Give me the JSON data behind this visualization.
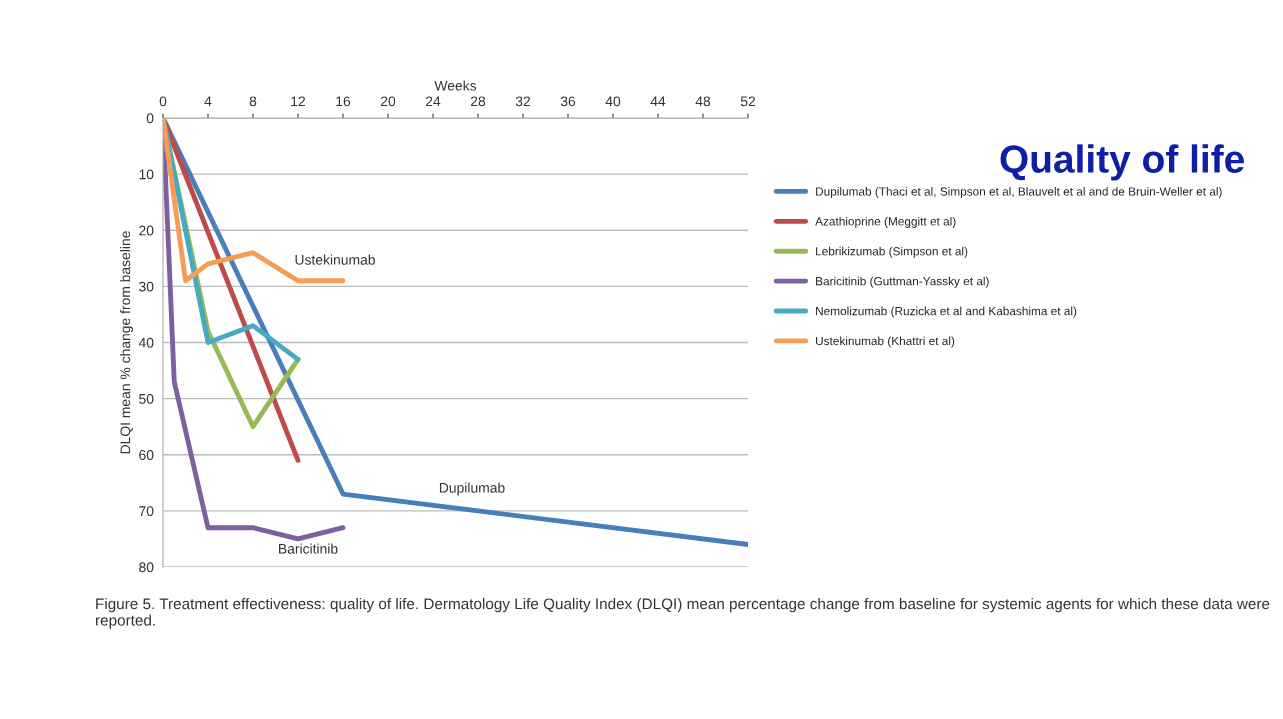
{
  "chart_data": {
    "type": "line",
    "title": "Quality of life",
    "xlabel": "Weeks",
    "ylabel": "DLQI mean % change from baseline",
    "xlim": [
      0,
      52
    ],
    "xticks": [
      0,
      4,
      8,
      12,
      16,
      20,
      24,
      28,
      32,
      36,
      40,
      44,
      48,
      52
    ],
    "ylim": [
      80,
      0
    ],
    "yticks": [
      0,
      10,
      20,
      30,
      40,
      50,
      60,
      70,
      80
    ],
    "grid": "y",
    "legend": "right",
    "marker": "none",
    "line_style": "solid",
    "series": [
      {
        "name": "Dupilumab (Thaci et al, Simpson et al, Blauvelt et al and de Bruin-Weller et al)",
        "color": "#4a7ebb",
        "x": [
          0,
          16,
          52
        ],
        "values": [
          0,
          67,
          76
        ]
      },
      {
        "name": "Azathioprine (Meggitt et al)",
        "color": "#be4b48",
        "x": [
          0,
          12
        ],
        "values": [
          0,
          61
        ]
      },
      {
        "name": "Lebrikizumab (Simpson et al)",
        "color": "#98b954",
        "x": [
          0,
          4,
          8,
          12
        ],
        "values": [
          0,
          38,
          55,
          43
        ]
      },
      {
        "name": "Baricitinib (Guttman-Yassky et al)",
        "color": "#7d60a0",
        "x": [
          0,
          1,
          4,
          8,
          12,
          16
        ],
        "values": [
          0,
          47,
          73,
          73,
          75,
          73
        ]
      },
      {
        "name": "Nemolizumab (Ruzicka et al and Kabashima et al)",
        "color": "#46aac5",
        "x": [
          0,
          4,
          8,
          12
        ],
        "values": [
          0,
          40,
          37,
          43
        ]
      },
      {
        "name": "Ustekinumab (Khattri et al)",
        "color": "#f59d56",
        "x": [
          0,
          2,
          4,
          8,
          12,
          16
        ],
        "values": [
          0,
          29,
          26,
          24,
          29,
          29
        ]
      }
    ],
    "annotations": [
      "Ustekinumab",
      "Dupilumab",
      "Baricitinib",
      "Figure 5. Treatment effectiveness: quality of life. Dermatology Life Quality Index (DLQI) mean percentage change from baseline for systemic agents for which these data were reported."
    ]
  }
}
